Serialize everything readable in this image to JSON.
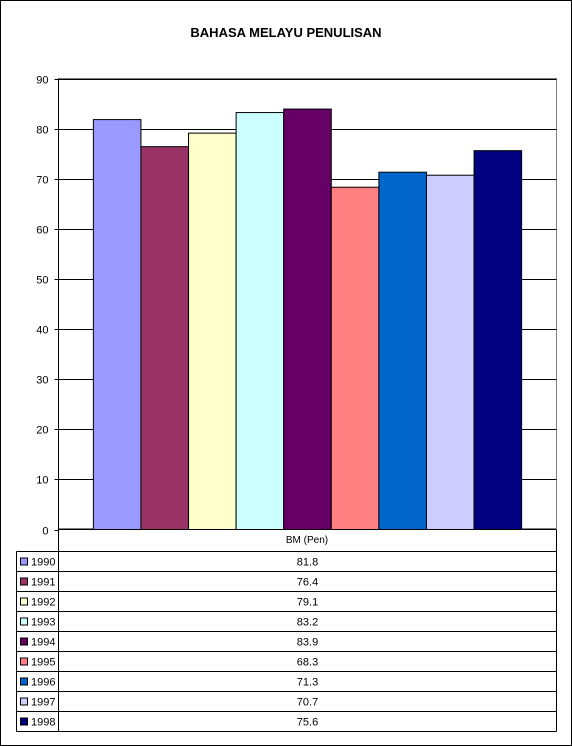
{
  "chart_data": {
    "type": "bar",
    "title": "BAHASA MELAYU PENULISAN",
    "category": "BM (Pen)",
    "ylim": [
      0,
      90
    ],
    "ytick_step": 10,
    "grid": true,
    "legend": "data-table-below",
    "series": [
      {
        "name": "1990",
        "color": "#9999FF",
        "values": [
          81.8
        ],
        "label": "81.8"
      },
      {
        "name": "1991",
        "color": "#993366",
        "values": [
          76.4
        ],
        "label": "76.4"
      },
      {
        "name": "1992",
        "color": "#FFFFCC",
        "values": [
          79.1
        ],
        "label": "79.1"
      },
      {
        "name": "1993",
        "color": "#CCFFFF",
        "values": [
          83.2
        ],
        "label": "83.2"
      },
      {
        "name": "1994",
        "color": "#660066",
        "values": [
          83.9
        ],
        "label": "83.9"
      },
      {
        "name": "1995",
        "color": "#FF8080",
        "values": [
          68.3
        ],
        "label": "68.3"
      },
      {
        "name": "1996",
        "color": "#0066CC",
        "values": [
          71.3
        ],
        "label": "71.3"
      },
      {
        "name": "1997",
        "color": "#CCCCFF",
        "values": [
          70.7
        ],
        "label": "70.7"
      },
      {
        "name": "1998",
        "color": "#000080",
        "values": [
          75.6
        ],
        "label": "75.6"
      }
    ]
  }
}
